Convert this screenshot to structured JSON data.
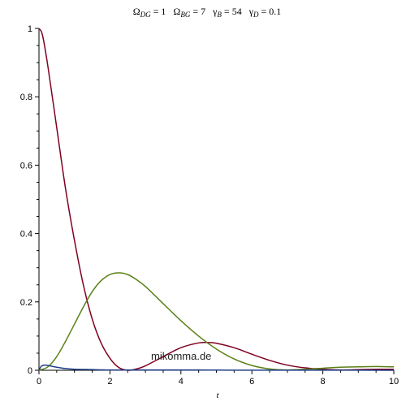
{
  "chart_data": {
    "type": "line",
    "title_parts": [
      {
        "sym": "Ω",
        "sub": "DG",
        "eq": " = 1"
      },
      {
        "sym": "Ω",
        "sub": "BG",
        "eq": " = 7"
      },
      {
        "sym": "γ",
        "sub": "B",
        "eq": " = 54"
      },
      {
        "sym": "γ",
        "sub": "D",
        "eq": " = 0.1"
      }
    ],
    "xlabel": "t",
    "ylabel": "",
    "xlim": [
      0,
      10
    ],
    "ylim": [
      0,
      1
    ],
    "xticks": [
      0,
      2,
      4,
      6,
      8,
      10
    ],
    "yticks": [
      0,
      0.2,
      0.4,
      0.6,
      0.8,
      1
    ],
    "ytick_labels": [
      "0",
      "0.2",
      "0.4",
      "0.6",
      "0.8",
      "1"
    ],
    "grid": false,
    "annotation": "mikomma.de",
    "series": [
      {
        "color": "#800020",
        "x": [
          0,
          0.1,
          0.25,
          0.5,
          0.75,
          1,
          1.25,
          1.5,
          1.75,
          2,
          2.25,
          2.5,
          2.75,
          3,
          3.5,
          4,
          4.5,
          4.8,
          5,
          5.5,
          6,
          6.5,
          7,
          7.5,
          8,
          8.5,
          9,
          9.5,
          10
        ],
        "values": [
          1,
          0.98,
          0.89,
          0.71,
          0.53,
          0.38,
          0.25,
          0.15,
          0.08,
          0.035,
          0.008,
          0.0,
          0.004,
          0.013,
          0.04,
          0.066,
          0.08,
          0.081,
          0.079,
          0.066,
          0.047,
          0.029,
          0.015,
          0.007,
          0.003,
          0.001,
          0.002,
          0.003,
          0.003
        ]
      },
      {
        "color": "#5a8016",
        "x": [
          0,
          0.25,
          0.5,
          0.75,
          1,
          1.25,
          1.5,
          1.75,
          2,
          2.25,
          2.5,
          2.75,
          3,
          3.5,
          4,
          4.5,
          5,
          5.5,
          6,
          6.5,
          7,
          7.5,
          8,
          8.5,
          9,
          9.5,
          10
        ],
        "values": [
          0,
          0.01,
          0.04,
          0.085,
          0.135,
          0.185,
          0.23,
          0.262,
          0.28,
          0.285,
          0.28,
          0.265,
          0.245,
          0.195,
          0.145,
          0.1,
          0.062,
          0.033,
          0.014,
          0.004,
          0.001,
          0.003,
          0.006,
          0.009,
          0.01,
          0.011,
          0.01
        ]
      },
      {
        "color": "#1f3f8a",
        "x": [
          0,
          0.05,
          0.1,
          0.2,
          0.3,
          0.5,
          0.75,
          1,
          1.5,
          2,
          3,
          4,
          5,
          6,
          8,
          10
        ],
        "values": [
          0,
          0.01,
          0.014,
          0.015,
          0.013,
          0.009,
          0.005,
          0.003,
          0.002,
          0.001,
          0.001,
          0.001,
          0.0005,
          0.0003,
          0.0002,
          0.0001
        ]
      }
    ]
  }
}
